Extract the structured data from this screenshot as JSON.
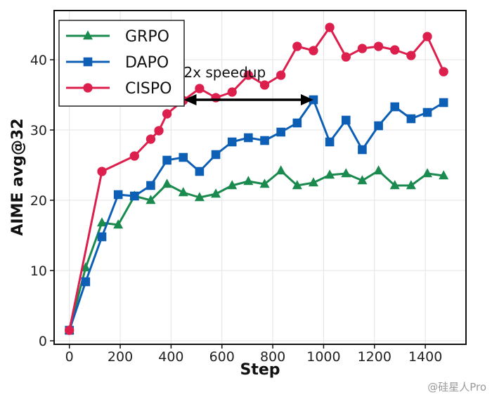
{
  "chart_data": {
    "type": "line",
    "xlabel": "Step",
    "ylabel": "AIME avg@32",
    "xlim": [
      -60,
      1560
    ],
    "ylim": [
      -0.5,
      47
    ],
    "xticks": [
      0,
      200,
      400,
      600,
      800,
      1000,
      1200,
      1400
    ],
    "yticks": [
      0,
      10,
      20,
      30,
      40
    ],
    "grid": true,
    "legend": "top-left",
    "series": [
      {
        "name": "GRPO",
        "color": "#1a8a4f",
        "marker": "triangle",
        "x": [
          0,
          64,
          128,
          192,
          256,
          320,
          384,
          448,
          512,
          576,
          640,
          704,
          768,
          832,
          896,
          960,
          1024,
          1088,
          1152,
          1216,
          1280,
          1344,
          1408,
          1472
        ],
        "y": [
          1.5,
          10.4,
          16.8,
          16.5,
          20.6,
          20.0,
          22.3,
          21.1,
          20.4,
          20.9,
          22.1,
          22.7,
          22.3,
          24.2,
          22.1,
          22.5,
          23.6,
          23.8,
          22.8,
          24.2,
          22.1,
          22.1,
          23.8,
          23.5
        ]
      },
      {
        "name": "DAPO",
        "color": "#0d5fb5",
        "marker": "square",
        "x": [
          0,
          64,
          128,
          192,
          256,
          320,
          384,
          448,
          512,
          576,
          640,
          704,
          768,
          832,
          896,
          960,
          1024,
          1088,
          1152,
          1216,
          1280,
          1344,
          1408,
          1472
        ],
        "y": [
          1.5,
          8.4,
          14.8,
          20.8,
          20.6,
          22.1,
          25.7,
          26.1,
          24.1,
          26.5,
          28.3,
          28.9,
          28.5,
          29.7,
          31.0,
          34.3,
          28.3,
          31.4,
          27.2,
          30.6,
          33.3,
          31.6,
          32.5,
          33.9
        ]
      },
      {
        "name": "CISPO",
        "color": "#dc1f4d",
        "marker": "circle",
        "x": [
          0,
          128,
          256,
          320,
          352,
          384,
          448,
          512,
          576,
          640,
          704,
          768,
          832,
          896,
          960,
          1024,
          1088,
          1152,
          1216,
          1280,
          1344,
          1408,
          1472
        ],
        "y": [
          1.5,
          24.1,
          26.3,
          28.7,
          29.9,
          32.3,
          34.2,
          35.9,
          34.6,
          35.4,
          37.8,
          36.4,
          37.8,
          41.9,
          41.3,
          44.6,
          40.4,
          41.6,
          41.9,
          41.4,
          40.6,
          43.3,
          38.3
        ]
      }
    ],
    "annotation": {
      "text": "2x speedup",
      "arrow_x": [
        450,
        960
      ],
      "arrow_y": 34.3
    }
  },
  "watermark": "@硅星人Pro"
}
